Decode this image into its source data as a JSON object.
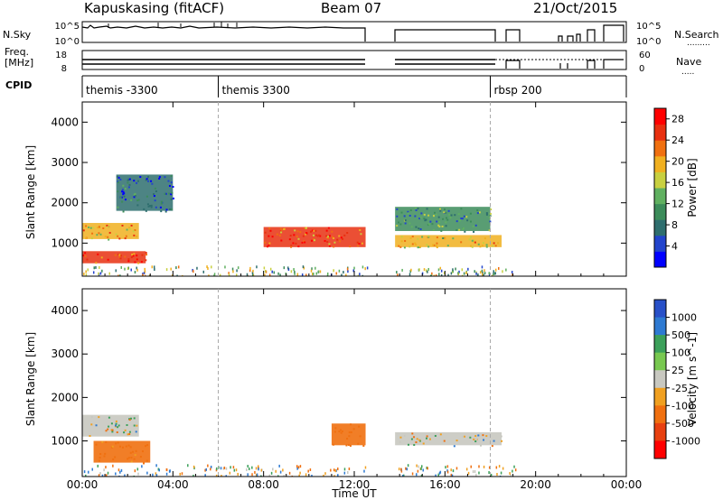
{
  "header": {
    "station": "Kapuskasing (fitACF)",
    "beam": "Beam 07",
    "date": "21/Oct/2015"
  },
  "strip_nsky": {
    "left_label": "N.Sky",
    "right_label": "N.Search",
    "left_ticks": [
      "10^5",
      "10^0"
    ],
    "right_ticks": [
      "10^5",
      "10^0"
    ]
  },
  "strip_freq": {
    "left_label_1": "Freq.",
    "left_label_2": "[MHz]",
    "right_label": "Nave",
    "left_ticks": [
      "18",
      "8"
    ],
    "right_ticks": [
      "60",
      "0"
    ]
  },
  "cpid": {
    "label": "CPID",
    "segments": [
      {
        "start_hour": 0.0,
        "name": "themis -3300"
      },
      {
        "start_hour": 6.0,
        "name": "themis 3300"
      },
      {
        "start_hour": 18.0,
        "name": "rbsp 200"
      }
    ]
  },
  "colors": {
    "power_scale": [
      "#0000ff",
      "#2244cc",
      "#2e6e6e",
      "#3c8c5a",
      "#60b060",
      "#c8d040",
      "#f0b020",
      "#f07010",
      "#e83010",
      "#ff0000"
    ],
    "velocity_scale": [
      "#2850c8",
      "#2e7ad2",
      "#3ca05a",
      "#78c850",
      "#c8c8c0",
      "#f0a020",
      "#f07010",
      "#e84010",
      "#ff0000"
    ]
  },
  "chart_data": [
    {
      "type": "heatmap",
      "panel": "power",
      "title": "Kapuskasing (fitACF) Beam 07 21/Oct/2015",
      "xlabel": "Time UT",
      "ylabel": "Slant Range [km]",
      "xlim": [
        0,
        24
      ],
      "ylim": [
        180,
        4500
      ],
      "x_ticks": [
        "00:00",
        "04:00",
        "08:00",
        "12:00",
        "16:00",
        "20:00",
        "00:00"
      ],
      "y_ticks": [
        1000,
        2000,
        3000,
        4000
      ],
      "colorbar": {
        "label": "Power [dB]",
        "ticks": [
          4,
          8,
          12,
          16,
          20,
          24,
          28
        ],
        "range": [
          0,
          30
        ]
      },
      "data_gaps_hours": [
        [
          12.6,
          13.8
        ],
        [
          19.1,
          24.0
        ]
      ],
      "echo_regions": [
        {
          "t_start": 0.0,
          "t_end": 2.8,
          "range_start_km": 500,
          "range_end_km": 800,
          "power_db": 26
        },
        {
          "t_start": 0.0,
          "t_end": 2.5,
          "range_start_km": 1100,
          "range_end_km": 1500,
          "power_db": 20
        },
        {
          "t_start": 1.5,
          "t_end": 4.0,
          "range_start_km": 1800,
          "range_end_km": 2700,
          "power_db": 6
        },
        {
          "t_start": 8.0,
          "t_end": 12.5,
          "range_start_km": 900,
          "range_end_km": 1400,
          "power_db": 24
        },
        {
          "t_start": 13.8,
          "t_end": 18.5,
          "range_start_km": 900,
          "range_end_km": 1200,
          "power_db": 18
        },
        {
          "t_start": 13.8,
          "t_end": 18.0,
          "range_start_km": 1300,
          "range_end_km": 1900,
          "power_db": 10
        }
      ]
    },
    {
      "type": "heatmap",
      "panel": "velocity",
      "xlabel": "Time UT",
      "ylabel": "Slant Range [km]",
      "xlim": [
        0,
        24
      ],
      "ylim": [
        180,
        4500
      ],
      "x_ticks": [
        "00:00",
        "04:00",
        "08:00",
        "12:00",
        "16:00",
        "20:00",
        "00:00"
      ],
      "y_ticks": [
        1000,
        2000,
        3000,
        4000
      ],
      "colorbar": {
        "label": "Velocity [m s^-1]",
        "ticks": [
          "1000",
          "500",
          "100",
          "25",
          "-25",
          "-100",
          "-500",
          "-1000"
        ]
      },
      "data_gaps_hours": [
        [
          12.6,
          13.8
        ],
        [
          19.1,
          24.0
        ]
      ],
      "echo_regions": [
        {
          "t_start": 0.0,
          "t_end": 2.5,
          "range_start_km": 1100,
          "range_end_km": 1600,
          "velocity": 0
        },
        {
          "t_start": 0.5,
          "t_end": 3.0,
          "range_start_km": 500,
          "range_end_km": 1000,
          "velocity": -200
        },
        {
          "t_start": 13.8,
          "t_end": 18.5,
          "range_start_km": 900,
          "range_end_km": 1200,
          "velocity": 0
        },
        {
          "t_start": 11.0,
          "t_end": 12.5,
          "range_start_km": 900,
          "range_end_km": 1400,
          "velocity": -300
        }
      ]
    }
  ]
}
